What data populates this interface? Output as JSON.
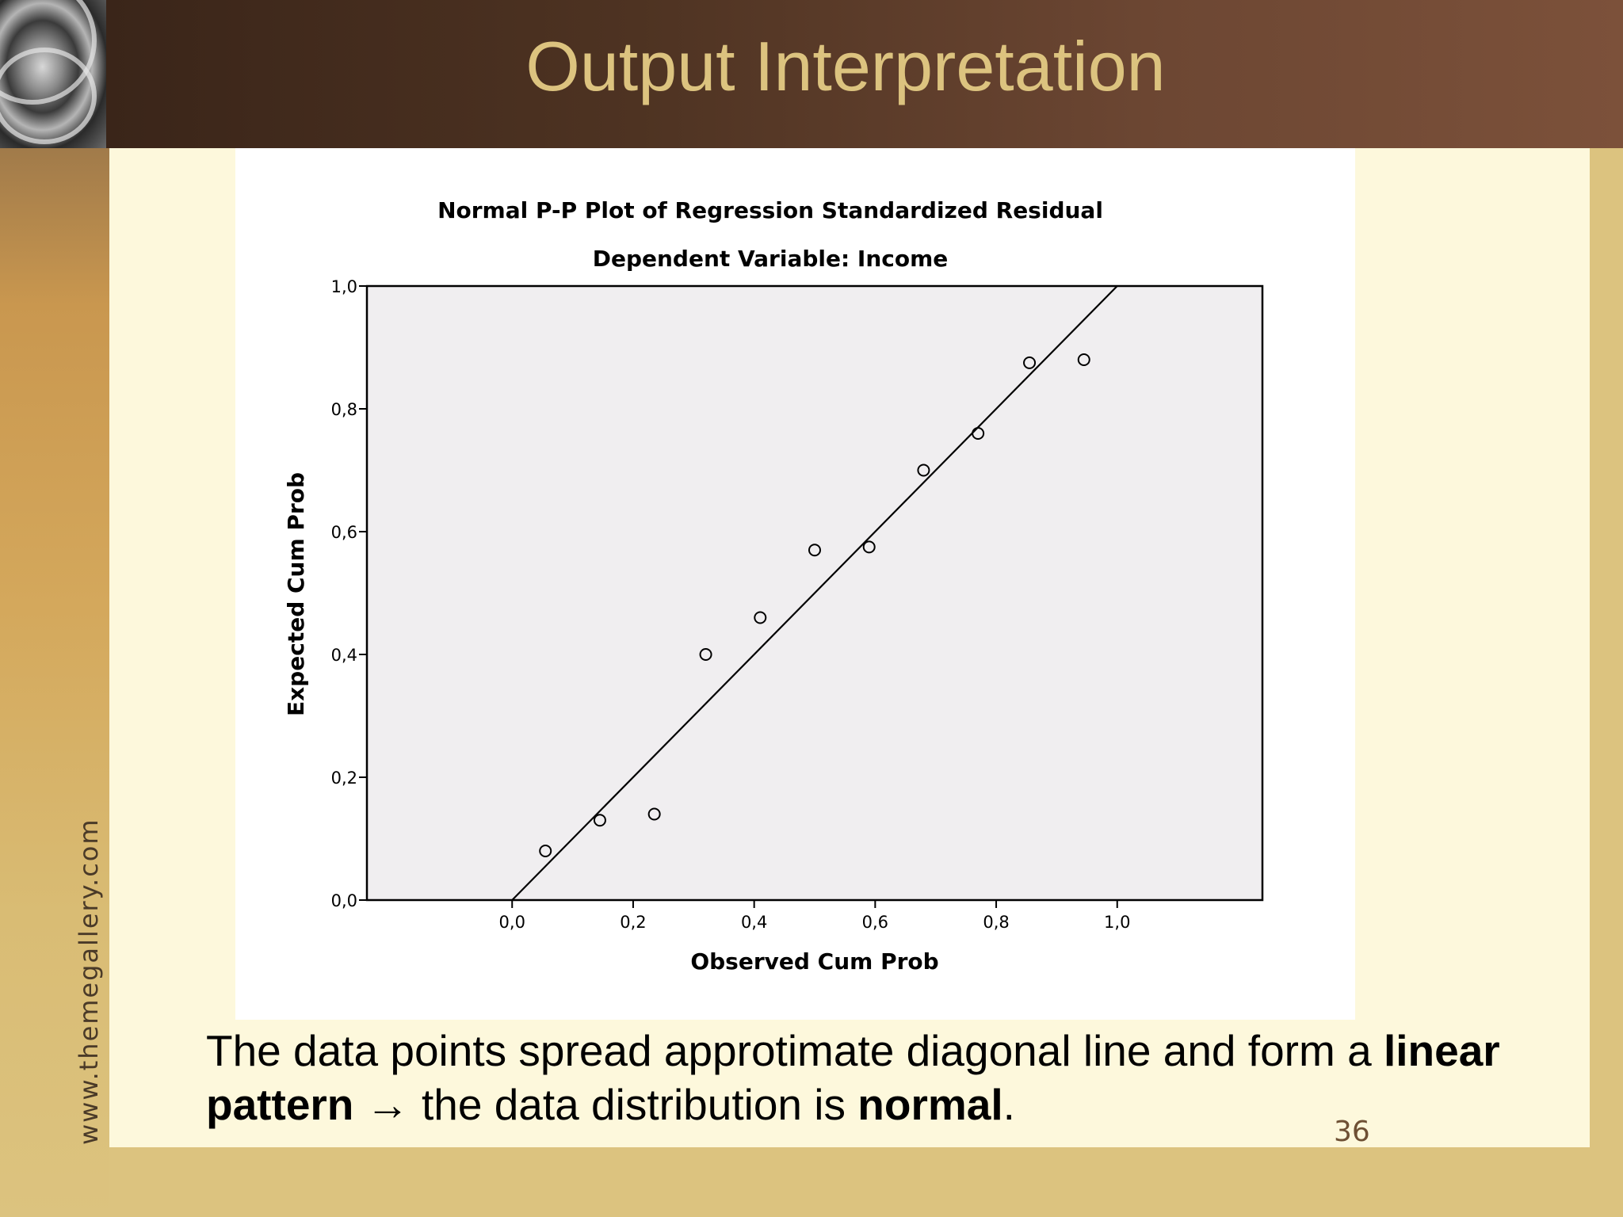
{
  "slide": {
    "title": "Output Interpretation",
    "page_number": "36",
    "watermark": "www.themegallery.com",
    "body": {
      "line1_plain": "The data points spread approtimate diagonal line and form a ",
      "line1_bold": "linear",
      "line2_bold_start": "pattern",
      "arrow": " → ",
      "line2_plain": "the data distribution is ",
      "line2_bold_end": "normal",
      "line2_end": "."
    }
  },
  "colors": {
    "title": "#dcc37f",
    "plot_bg": "#f0eef0",
    "header_dark": "#3a2519",
    "header_light": "#7c513a",
    "panel": "#fdf8dc"
  },
  "chart_data": {
    "type": "scatter",
    "title": "Normal P-P Plot of Regression Standardized Residual",
    "subtitle": "Dependent Variable: Income",
    "xlabel": "Observed Cum Prob",
    "ylabel": "Expected Cum Prob",
    "xlim": [
      -0.24,
      1.24
    ],
    "ylim": [
      0.0,
      1.0
    ],
    "xticks": [
      0.0,
      0.2,
      0.4,
      0.6,
      0.8,
      1.0
    ],
    "xtick_labels": [
      "0,0",
      "0,2",
      "0,4",
      "0,6",
      "0,8",
      "1,0"
    ],
    "yticks": [
      0.0,
      0.2,
      0.4,
      0.6,
      0.8,
      1.0
    ],
    "ytick_labels": [
      "0,0",
      "0,2",
      "0,4",
      "0,6",
      "0,8",
      "1,0"
    ],
    "reference_line": [
      [
        0.0,
        0.0
      ],
      [
        1.0,
        1.0
      ]
    ],
    "points": [
      {
        "x": 0.055,
        "y": 0.08
      },
      {
        "x": 0.145,
        "y": 0.13
      },
      {
        "x": 0.235,
        "y": 0.14
      },
      {
        "x": 0.32,
        "y": 0.4
      },
      {
        "x": 0.41,
        "y": 0.46
      },
      {
        "x": 0.5,
        "y": 0.57
      },
      {
        "x": 0.59,
        "y": 0.575
      },
      {
        "x": 0.68,
        "y": 0.7
      },
      {
        "x": 0.77,
        "y": 0.76
      },
      {
        "x": 0.855,
        "y": 0.875
      },
      {
        "x": 0.945,
        "y": 0.88
      }
    ],
    "grid": false,
    "legend": "none"
  }
}
